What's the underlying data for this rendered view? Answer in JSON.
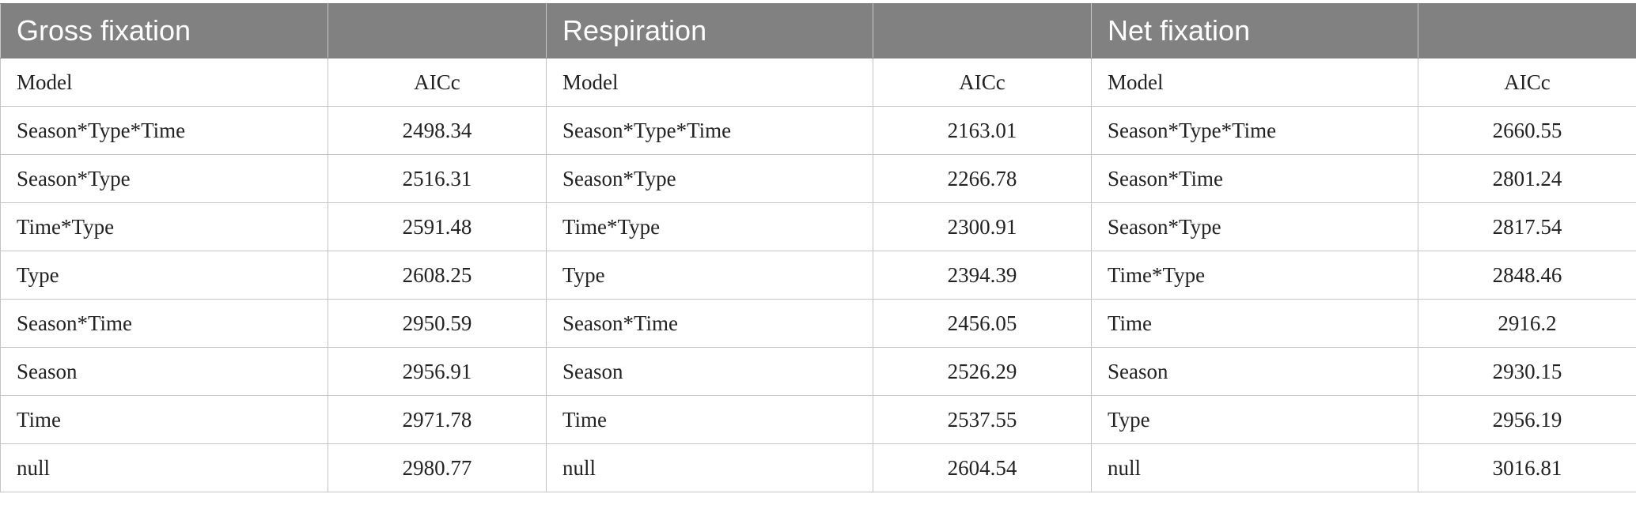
{
  "groups": [
    {
      "title": "Gross fixation"
    },
    {
      "title": "Respiration"
    },
    {
      "title": "Net fixation"
    }
  ],
  "subheaders": {
    "model": "Model",
    "aicc": "AICc"
  },
  "rows": [
    [
      {
        "model": "Season*Type*Time",
        "aicc": "2498.34"
      },
      {
        "model": "Season*Type*Time",
        "aicc": "2163.01"
      },
      {
        "model": "Season*Type*Time",
        "aicc": "2660.55"
      }
    ],
    [
      {
        "model": "Season*Type",
        "aicc": "2516.31"
      },
      {
        "model": "Season*Type",
        "aicc": "2266.78"
      },
      {
        "model": "Season*Time",
        "aicc": "2801.24"
      }
    ],
    [
      {
        "model": "Time*Type",
        "aicc": "2591.48"
      },
      {
        "model": "Time*Type",
        "aicc": "2300.91"
      },
      {
        "model": "Season*Type",
        "aicc": "2817.54"
      }
    ],
    [
      {
        "model": "Type",
        "aicc": "2608.25"
      },
      {
        "model": "Type",
        "aicc": "2394.39"
      },
      {
        "model": "Time*Type",
        "aicc": "2848.46"
      }
    ],
    [
      {
        "model": "Season*Time",
        "aicc": "2950.59"
      },
      {
        "model": "Season*Time",
        "aicc": "2456.05"
      },
      {
        "model": "Time",
        "aicc": "2916.2"
      }
    ],
    [
      {
        "model": "Season",
        "aicc": "2956.91"
      },
      {
        "model": "Season",
        "aicc": "2526.29"
      },
      {
        "model": "Season",
        "aicc": "2930.15"
      }
    ],
    [
      {
        "model": "Time",
        "aicc": "2971.78"
      },
      {
        "model": "Time",
        "aicc": "2537.55"
      },
      {
        "model": "Type",
        "aicc": "2956.19"
      }
    ],
    [
      {
        "model": "null",
        "aicc": "2980.77"
      },
      {
        "model": "null",
        "aicc": "2604.54"
      },
      {
        "model": "null",
        "aicc": "3016.81"
      }
    ]
  ]
}
